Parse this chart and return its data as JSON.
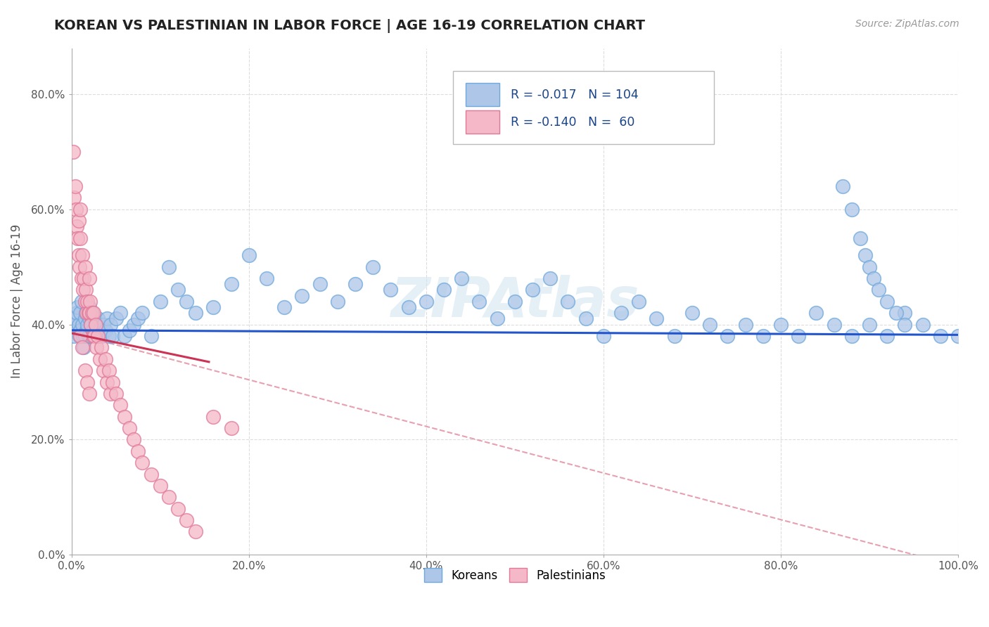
{
  "title": "KOREAN VS PALESTINIAN IN LABOR FORCE | AGE 16-19 CORRELATION CHART",
  "source": "Source: ZipAtlas.com",
  "ylabel": "In Labor Force | Age 16-19",
  "xlim": [
    0.0,
    1.0
  ],
  "ylim": [
    0.0,
    0.88
  ],
  "xticks": [
    0.0,
    0.2,
    0.4,
    0.6,
    0.8,
    1.0
  ],
  "yticks": [
    0.0,
    0.2,
    0.4,
    0.6,
    0.8
  ],
  "xticklabels": [
    "0.0%",
    "20.0%",
    "40.0%",
    "60.0%",
    "80.0%",
    "100.0%"
  ],
  "yticklabels": [
    "0.0%",
    "20.0%",
    "40.0%",
    "60.0%",
    "80.0%"
  ],
  "korean_color": "#aec6e8",
  "korean_edge": "#6fa8dc",
  "palestinian_color": "#f4b8c8",
  "palestinian_edge": "#e07898",
  "trend_korean_color": "#2255cc",
  "trend_palestinian_solid_color": "#cc3355",
  "trend_palestinian_dash_color": "#e8a0b0",
  "background_color": "#ffffff",
  "grid_color": "#cccccc",
  "korean_x": [
    0.003,
    0.004,
    0.005,
    0.006,
    0.007,
    0.008,
    0.009,
    0.01,
    0.01,
    0.011,
    0.012,
    0.013,
    0.014,
    0.015,
    0.015,
    0.016,
    0.017,
    0.018,
    0.019,
    0.02,
    0.02,
    0.021,
    0.022,
    0.023,
    0.024,
    0.025,
    0.026,
    0.027,
    0.028,
    0.03,
    0.032,
    0.034,
    0.036,
    0.038,
    0.04,
    0.042,
    0.044,
    0.046,
    0.05,
    0.055,
    0.06,
    0.065,
    0.07,
    0.075,
    0.08,
    0.09,
    0.1,
    0.11,
    0.12,
    0.13,
    0.14,
    0.16,
    0.18,
    0.2,
    0.22,
    0.24,
    0.26,
    0.28,
    0.3,
    0.32,
    0.34,
    0.36,
    0.38,
    0.4,
    0.42,
    0.44,
    0.46,
    0.48,
    0.5,
    0.52,
    0.54,
    0.56,
    0.58,
    0.6,
    0.62,
    0.64,
    0.66,
    0.68,
    0.7,
    0.72,
    0.74,
    0.76,
    0.78,
    0.8,
    0.82,
    0.84,
    0.86,
    0.88,
    0.9,
    0.92,
    0.94,
    0.96,
    0.98,
    1.0,
    0.87,
    0.88,
    0.89,
    0.895,
    0.9,
    0.905,
    0.91,
    0.92,
    0.93,
    0.94
  ],
  "korean_y": [
    0.38,
    0.4,
    0.41,
    0.42,
    0.43,
    0.4,
    0.38,
    0.39,
    0.42,
    0.44,
    0.4,
    0.38,
    0.36,
    0.38,
    0.41,
    0.42,
    0.39,
    0.4,
    0.38,
    0.41,
    0.43,
    0.38,
    0.4,
    0.42,
    0.39,
    0.38,
    0.41,
    0.4,
    0.38,
    0.41,
    0.39,
    0.38,
    0.4,
    0.39,
    0.41,
    0.38,
    0.4,
    0.38,
    0.41,
    0.42,
    0.38,
    0.39,
    0.4,
    0.41,
    0.42,
    0.38,
    0.44,
    0.5,
    0.46,
    0.44,
    0.42,
    0.43,
    0.47,
    0.52,
    0.48,
    0.43,
    0.45,
    0.47,
    0.44,
    0.47,
    0.5,
    0.46,
    0.43,
    0.44,
    0.46,
    0.48,
    0.44,
    0.41,
    0.44,
    0.46,
    0.48,
    0.44,
    0.41,
    0.38,
    0.42,
    0.44,
    0.41,
    0.38,
    0.42,
    0.4,
    0.38,
    0.4,
    0.38,
    0.4,
    0.38,
    0.42,
    0.4,
    0.38,
    0.4,
    0.38,
    0.42,
    0.4,
    0.38,
    0.38,
    0.64,
    0.6,
    0.55,
    0.52,
    0.5,
    0.48,
    0.46,
    0.44,
    0.42,
    0.4
  ],
  "palestinian_x": [
    0.002,
    0.003,
    0.004,
    0.005,
    0.006,
    0.007,
    0.008,
    0.008,
    0.009,
    0.01,
    0.01,
    0.011,
    0.012,
    0.013,
    0.014,
    0.015,
    0.015,
    0.016,
    0.017,
    0.018,
    0.019,
    0.02,
    0.02,
    0.021,
    0.022,
    0.023,
    0.024,
    0.025,
    0.026,
    0.027,
    0.028,
    0.03,
    0.032,
    0.034,
    0.036,
    0.038,
    0.04,
    0.042,
    0.044,
    0.046,
    0.05,
    0.055,
    0.06,
    0.065,
    0.07,
    0.075,
    0.08,
    0.09,
    0.1,
    0.11,
    0.12,
    0.13,
    0.14,
    0.16,
    0.18,
    0.01,
    0.012,
    0.015,
    0.018,
    0.02
  ],
  "palestinian_y": [
    0.7,
    0.62,
    0.64,
    0.6,
    0.57,
    0.55,
    0.52,
    0.58,
    0.5,
    0.55,
    0.6,
    0.48,
    0.52,
    0.46,
    0.48,
    0.5,
    0.44,
    0.46,
    0.42,
    0.44,
    0.42,
    0.48,
    0.42,
    0.44,
    0.4,
    0.42,
    0.38,
    0.42,
    0.38,
    0.4,
    0.36,
    0.38,
    0.34,
    0.36,
    0.32,
    0.34,
    0.3,
    0.32,
    0.28,
    0.3,
    0.28,
    0.26,
    0.24,
    0.22,
    0.2,
    0.18,
    0.16,
    0.14,
    0.12,
    0.1,
    0.08,
    0.06,
    0.04,
    0.24,
    0.22,
    0.38,
    0.36,
    0.32,
    0.3,
    0.28
  ]
}
